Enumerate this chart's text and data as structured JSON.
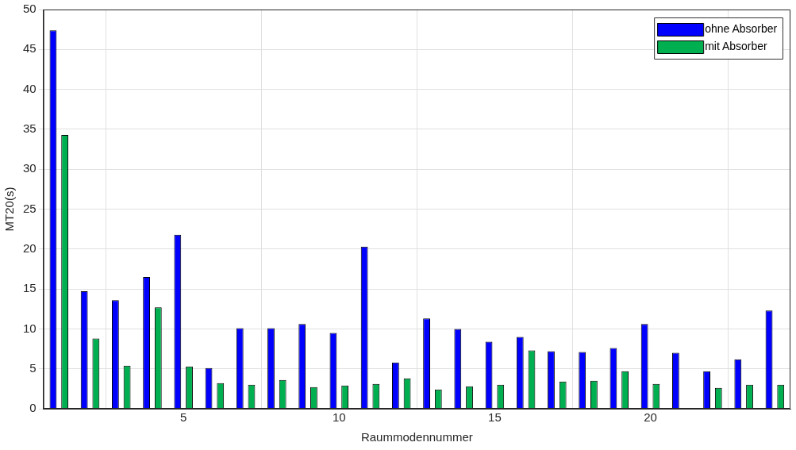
{
  "chart_data": {
    "type": "bar",
    "xlabel": "Raummodennummer",
    "ylabel": "MT20(s)",
    "x": [
      1,
      2,
      3,
      4,
      5,
      6,
      7,
      8,
      9,
      10,
      11,
      12,
      13,
      14,
      15,
      16,
      17,
      18,
      19,
      20,
      21,
      22,
      23,
      24
    ],
    "series": [
      {
        "name": "ohne Absorber",
        "color": "#0000ff",
        "values": [
          47.4,
          14.7,
          13.6,
          16.5,
          21.8,
          5.1,
          10.1,
          10.1,
          10.6,
          9.5,
          20.3,
          5.8,
          11.3,
          10.0,
          8.4,
          9.0,
          7.2,
          7.1,
          7.6,
          10.6,
          7.0,
          4.7,
          6.2,
          12.3
        ]
      },
      {
        "name": "mit Absorber",
        "color": "#00b050",
        "values": [
          34.3,
          8.8,
          5.4,
          12.7,
          5.3,
          3.2,
          3.0,
          3.6,
          2.7,
          2.9,
          3.1,
          3.8,
          2.4,
          2.8,
          3.0,
          7.3,
          3.4,
          3.5,
          4.7,
          3.1,
          null,
          2.6,
          3.0,
          3.0
        ]
      }
    ],
    "xlim": [
      0.5,
      24.5
    ],
    "xticks": [
      5,
      10,
      15,
      20
    ],
    "ylim": [
      0,
      50
    ],
    "yticks": [
      0,
      5,
      10,
      15,
      20,
      25,
      30,
      35,
      40,
      45,
      50
    ],
    "grid": true,
    "legend": "top right"
  }
}
